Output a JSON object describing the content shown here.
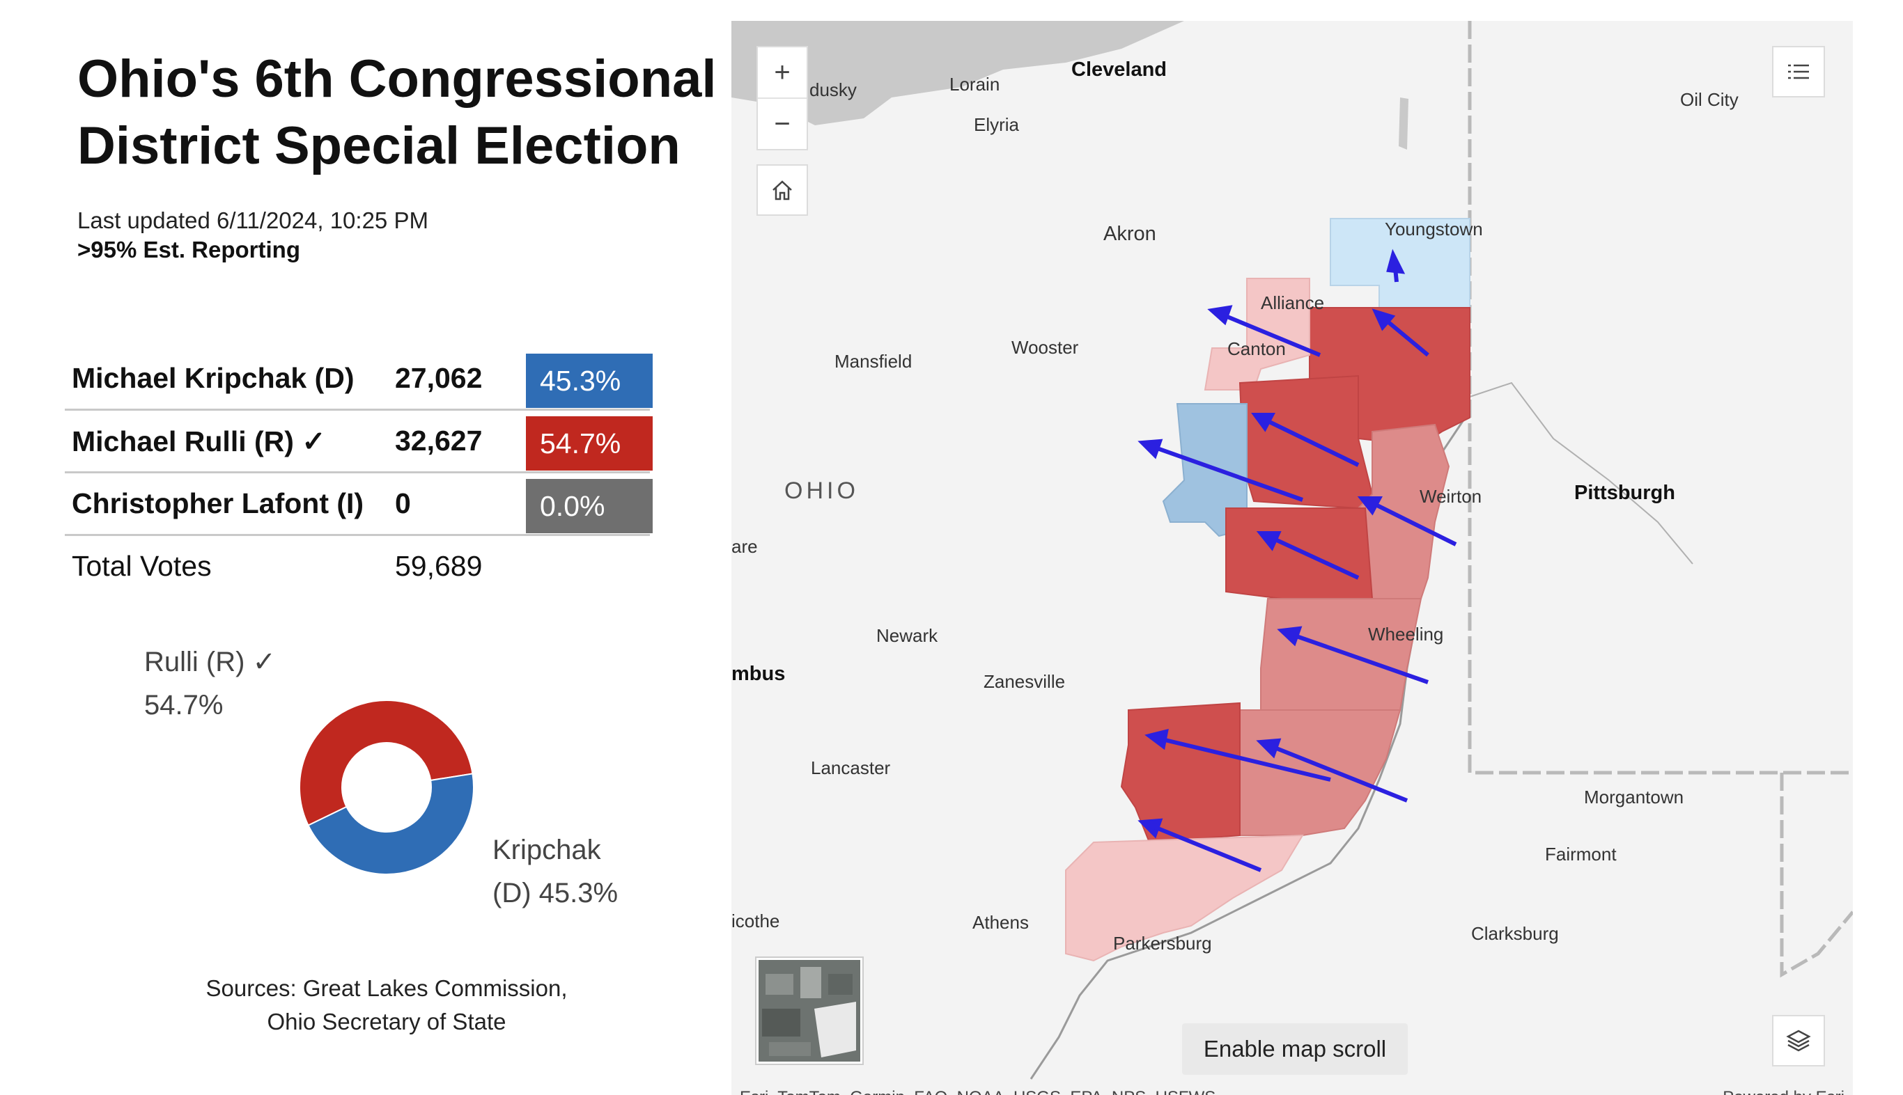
{
  "title": "Ohio's 6th Congressional District Special Election",
  "last_updated": "Last updated 6/11/2024, 10:25 PM",
  "reporting": ">95% Est. Reporting",
  "results": [
    {
      "name": "Michael Kripchak (D)",
      "votes": "27,062",
      "pct": "45.3%",
      "color": "#2f6db5"
    },
    {
      "name": "Michael Rulli (R) ✓",
      "votes": "32,627",
      "pct": "54.7%",
      "color": "#c0281f"
    },
    {
      "name": "Christopher Lafont (I)",
      "votes": "0",
      "pct": "0.0%",
      "color": "#6f6f6f"
    }
  ],
  "total": {
    "label": "Total Votes",
    "votes": "59,689"
  },
  "chart_data": {
    "type": "pie",
    "labels": [
      "Rulli (R) ✓",
      "Kripchak (D)"
    ],
    "values": [
      54.7,
      45.3
    ],
    "colors": [
      "#c0281f",
      "#2f6db5"
    ],
    "label_rulli": {
      "line1": "Rulli (R) ✓",
      "line2": "54.7%"
    },
    "label_kripchak": {
      "line1": "Kripchak",
      "line2": "(D) 45.3%"
    }
  },
  "sources": {
    "line1": "Sources: Great Lakes Commission,",
    "line2": "Ohio Secretary of State"
  },
  "map": {
    "state_label": "OHIO",
    "cities": [
      {
        "name": "Cleveland",
        "major": true
      },
      {
        "name": "dusky"
      },
      {
        "name": "Lorain"
      },
      {
        "name": "Elyria"
      },
      {
        "name": "Oil City"
      },
      {
        "name": "Akron"
      },
      {
        "name": "Youngstown"
      },
      {
        "name": "Alliance"
      },
      {
        "name": "Canton"
      },
      {
        "name": "Wooster"
      },
      {
        "name": "Mansfield"
      },
      {
        "name": "Weirton"
      },
      {
        "name": "Pittsburgh",
        "major": true
      },
      {
        "name": "are"
      },
      {
        "name": "Newark"
      },
      {
        "name": "mbus",
        "major": true
      },
      {
        "name": "Zanesville"
      },
      {
        "name": "Wheeling"
      },
      {
        "name": "Lancaster"
      },
      {
        "name": "Morgantown"
      },
      {
        "name": "Fairmont"
      },
      {
        "name": "icothe"
      },
      {
        "name": "Athens"
      },
      {
        "name": "Parkersburg"
      },
      {
        "name": "Clarksburg"
      }
    ],
    "controls": {
      "zoom_in": "+",
      "zoom_out": "−",
      "scroll_button": "Enable map scroll"
    },
    "attribution": "Esri, TomTom, Garmin, FAO, NOAA, USGS, EPA, NPS, USFWS",
    "powered_by": "Powered by Esri",
    "colors": {
      "dark_red": "#cf4f4e",
      "mid_red": "#dd8b8a",
      "light_red": "#f4c6c6",
      "light_blue": "#cde6f7",
      "mid_blue": "#9fc2e0",
      "arrow": "#2b20e0"
    }
  }
}
